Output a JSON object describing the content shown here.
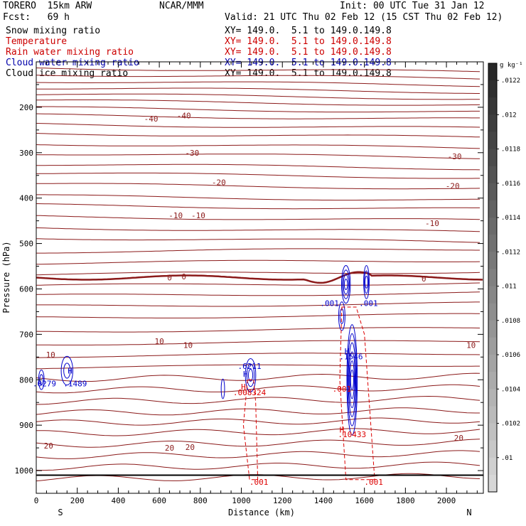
{
  "header": {
    "model_left": "TORERO  15km ARW",
    "fcst": "Fcst:   69 h",
    "center": "NCAR/MMM",
    "init": "Init: 00 UTC Tue 31 Jan 12",
    "valid": "Valid: 21 UTC Thu 02 Feb 12 (15 CST Thu 02 Feb 12)"
  },
  "legend": [
    {
      "label": "Snow mixing ratio",
      "xy": "",
      "color": "#000000"
    },
    {
      "label": "Temperature",
      "xy": "XY= 149.0.  5.1 to 149.0.149.8",
      "color": "#cc0000"
    },
    {
      "label": "Rain water mixing ratio",
      "xy": "XY= 149.0.  5.1 to 149.0.149.8",
      "color": "#cc0000"
    },
    {
      "label": "Cloud water mixing ratio",
      "xy": "XY= 149.0.  5.1 to 149.0.149.8",
      "color": "#0000aa"
    },
    {
      "label": "Cloud ice mixing ratio",
      "xy": "XY= 149.0.  5.1 to 149.0.149.8",
      "color": "#000000"
    }
  ],
  "snow_xy": "XY= 149.0.  5.1 to 149.0.149.8",
  "chart_data": {
    "type": "contour-cross-section",
    "xlabel": "Distance (km)",
    "ylabel": "Pressure (hPa)",
    "xlim": [
      0,
      2180
    ],
    "ylim": [
      1050,
      100
    ],
    "x_ticks": [
      "0",
      "200",
      "400",
      "600",
      "800",
      "1000",
      "1200",
      "1400",
      "1600",
      "1800",
      "2000"
    ],
    "x_tick_values": [
      0,
      200,
      400,
      600,
      800,
      1000,
      1200,
      1400,
      1600,
      1800,
      2000
    ],
    "y_ticks": [
      "200",
      "300",
      "400",
      "500",
      "600",
      "700",
      "800",
      "900",
      "1000"
    ],
    "y_tick_values": [
      200,
      300,
      400,
      500,
      600,
      700,
      800,
      900,
      1000
    ],
    "endpoint_left": "S",
    "endpoint_right": "N",
    "temperature_labels": [
      {
        "text": "-40",
        "x": 560,
        "p": 225
      },
      {
        "text": "-40",
        "x": 720,
        "p": 218
      },
      {
        "text": "-30",
        "x": 760,
        "p": 300
      },
      {
        "text": "-30",
        "x": 2040,
        "p": 308
      },
      {
        "text": "-20",
        "x": 890,
        "p": 365
      },
      {
        "text": "-20",
        "x": 2030,
        "p": 373
      },
      {
        "text": "-10",
        "x": 680,
        "p": 438
      },
      {
        "text": "-10",
        "x": 790,
        "p": 438
      },
      {
        "text": "-10",
        "x": 1930,
        "p": 455
      },
      {
        "text": "0",
        "x": 650,
        "p": 575
      },
      {
        "text": "0",
        "x": 720,
        "p": 573
      },
      {
        "text": "0",
        "x": 1890,
        "p": 577
      },
      {
        "text": "10",
        "x": 600,
        "p": 715
      },
      {
        "text": "10",
        "x": 740,
        "p": 724
      },
      {
        "text": "10",
        "x": 2120,
        "p": 724
      },
      {
        "text": "10",
        "x": 70,
        "p": 745
      },
      {
        "text": "20",
        "x": 60,
        "p": 945
      },
      {
        "text": "20",
        "x": 650,
        "p": 950
      },
      {
        "text": "20",
        "x": 750,
        "p": 948
      },
      {
        "text": "20",
        "x": 2060,
        "p": 928
      }
    ],
    "cloud_water_labels": [
      {
        "text": ".001",
        "x": 1430,
        "p": 631
      },
      {
        "text": ".001",
        "x": 1620,
        "p": 631
      },
      {
        "text": "H",
        "x": 165,
        "p": 780
      },
      {
        "text": ".1489",
        "x": 190,
        "p": 808
      },
      {
        "text": ".0279",
        "x": 40,
        "p": 808
      },
      {
        "text": "H",
        "x": 1020,
        "p": 787
      },
      {
        "text": ".6211",
        "x": 1040,
        "p": 770
      },
      {
        "text": "H",
        "x": 1515,
        "p": 737
      },
      {
        "text": ".1546",
        "x": 1535,
        "p": 749
      }
    ],
    "rain_labels": [
      {
        "text": "H",
        "x": 1010,
        "p": 815
      },
      {
        "text": ".008324",
        "x": 1040,
        "p": 828
      },
      {
        "text": ".001",
        "x": 1490,
        "p": 820
      },
      {
        "text": "H",
        "x": 1490,
        "p": 910
      },
      {
        "text": ".10433",
        "x": 1540,
        "p": 920
      },
      {
        "text": ".001",
        "x": 1085,
        "p": 1025
      },
      {
        "text": ".001",
        "x": 1645,
        "p": 1025
      }
    ],
    "colorbar": {
      "unit": "g kg⁻¹",
      "ticks": [
        ".0122",
        ".012",
        ".0118",
        ".0116",
        ".0114",
        ".0112",
        ".011",
        ".0108",
        ".0106",
        ".0104",
        ".0102",
        ".01"
      ]
    }
  }
}
